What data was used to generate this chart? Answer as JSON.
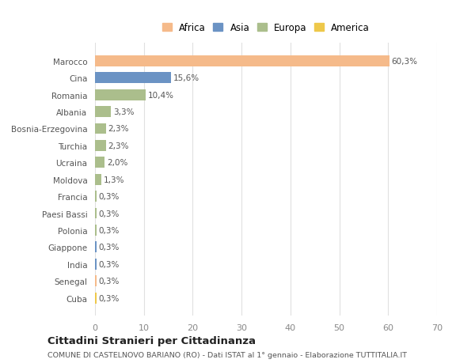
{
  "categories": [
    "Marocco",
    "Cina",
    "Romania",
    "Albania",
    "Bosnia-Erzegovina",
    "Turchia",
    "Ucraina",
    "Moldova",
    "Francia",
    "Paesi Bassi",
    "Polonia",
    "Giappone",
    "India",
    "Senegal",
    "Cuba"
  ],
  "values": [
    60.3,
    15.6,
    10.4,
    3.3,
    2.3,
    2.3,
    2.0,
    1.3,
    0.3,
    0.3,
    0.3,
    0.3,
    0.3,
    0.3,
    0.3
  ],
  "labels": [
    "60,3%",
    "15,6%",
    "10,4%",
    "3,3%",
    "2,3%",
    "2,3%",
    "2,0%",
    "1,3%",
    "0,3%",
    "0,3%",
    "0,3%",
    "0,3%",
    "0,3%",
    "0,3%",
    "0,3%"
  ],
  "colors": [
    "#F5BA8A",
    "#6B93C4",
    "#ABBE8C",
    "#ABBE8C",
    "#ABBE8C",
    "#ABBE8C",
    "#ABBE8C",
    "#ABBE8C",
    "#ABBE8C",
    "#ABBE8C",
    "#ABBE8C",
    "#6B93C4",
    "#6B93C4",
    "#F5BA8A",
    "#EEC84A"
  ],
  "continent": [
    "Africa",
    "Asia",
    "Europa",
    "Europa",
    "Europa",
    "Europa",
    "Europa",
    "Europa",
    "Europa",
    "Europa",
    "Europa",
    "Asia",
    "Asia",
    "Africa",
    "America"
  ],
  "legend_labels": [
    "Africa",
    "Asia",
    "Europa",
    "America"
  ],
  "legend_colors": [
    "#F5BA8A",
    "#6B93C4",
    "#ABBE8C",
    "#EEC84A"
  ],
  "xlim": [
    0,
    70
  ],
  "xticks": [
    0,
    10,
    20,
    30,
    40,
    50,
    60,
    70
  ],
  "title": "Cittadini Stranieri per Cittadinanza",
  "subtitle": "COMUNE DI CASTELNOVO BARIANO (RO) - Dati ISTAT al 1° gennaio - Elaborazione TUTTITALIA.IT",
  "bg_color": "#ffffff",
  "grid_color": "#e0e0e0",
  "bar_height": 0.65
}
